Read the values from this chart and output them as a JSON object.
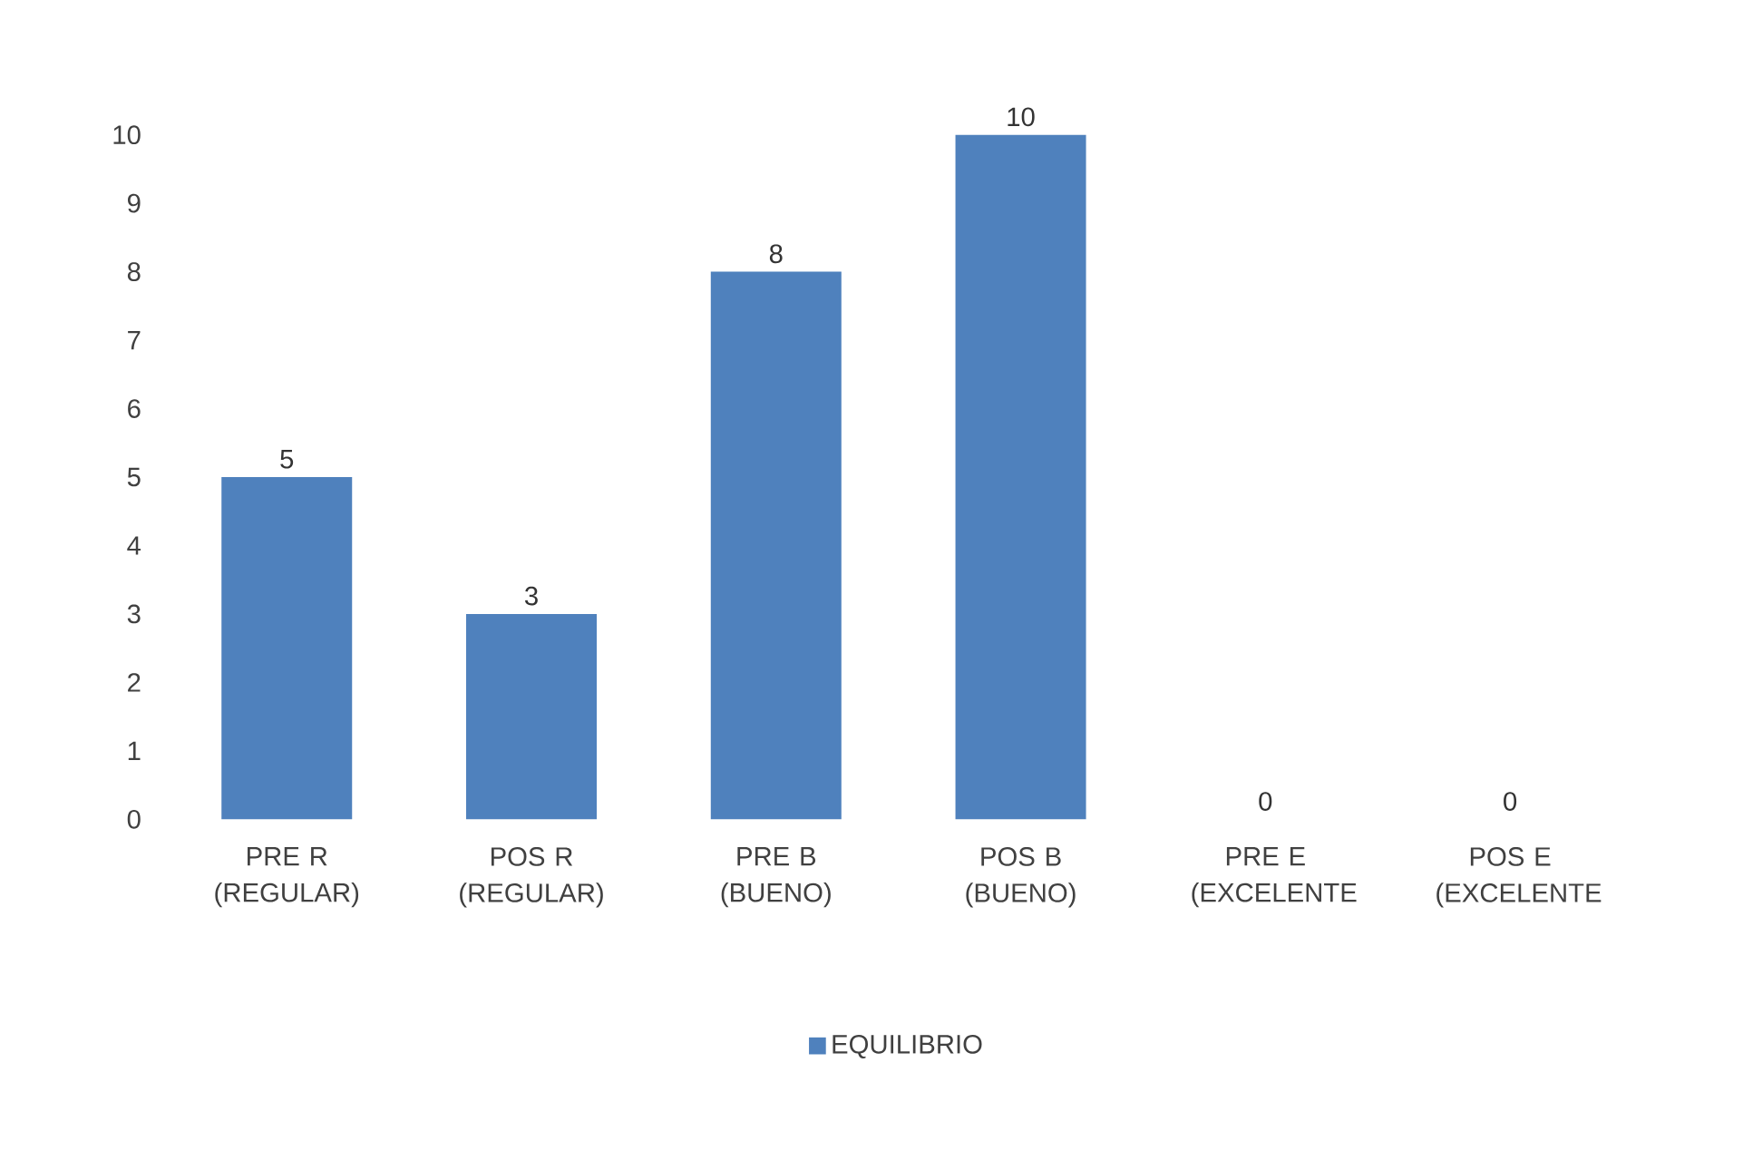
{
  "chart_data": {
    "type": "bar",
    "categories": [
      "PRE R (REGULAR)",
      "POS R (REGULAR)",
      "PRE B (BUENO)",
      "POS B (BUENO)",
      "PRE E (EXCELENTE",
      "POS E (EXCELENTE"
    ],
    "series": [
      {
        "name": "EQUILIBRIO",
        "color": "#4f81bd",
        "values": [
          5,
          3,
          8,
          10,
          0,
          0
        ]
      }
    ],
    "ylim": [
      0,
      10
    ],
    "yticks": [
      0,
      1,
      2,
      3,
      4,
      5,
      6,
      7,
      8,
      9,
      10
    ],
    "data_labels": true,
    "legend": "bottom",
    "grid": false
  }
}
